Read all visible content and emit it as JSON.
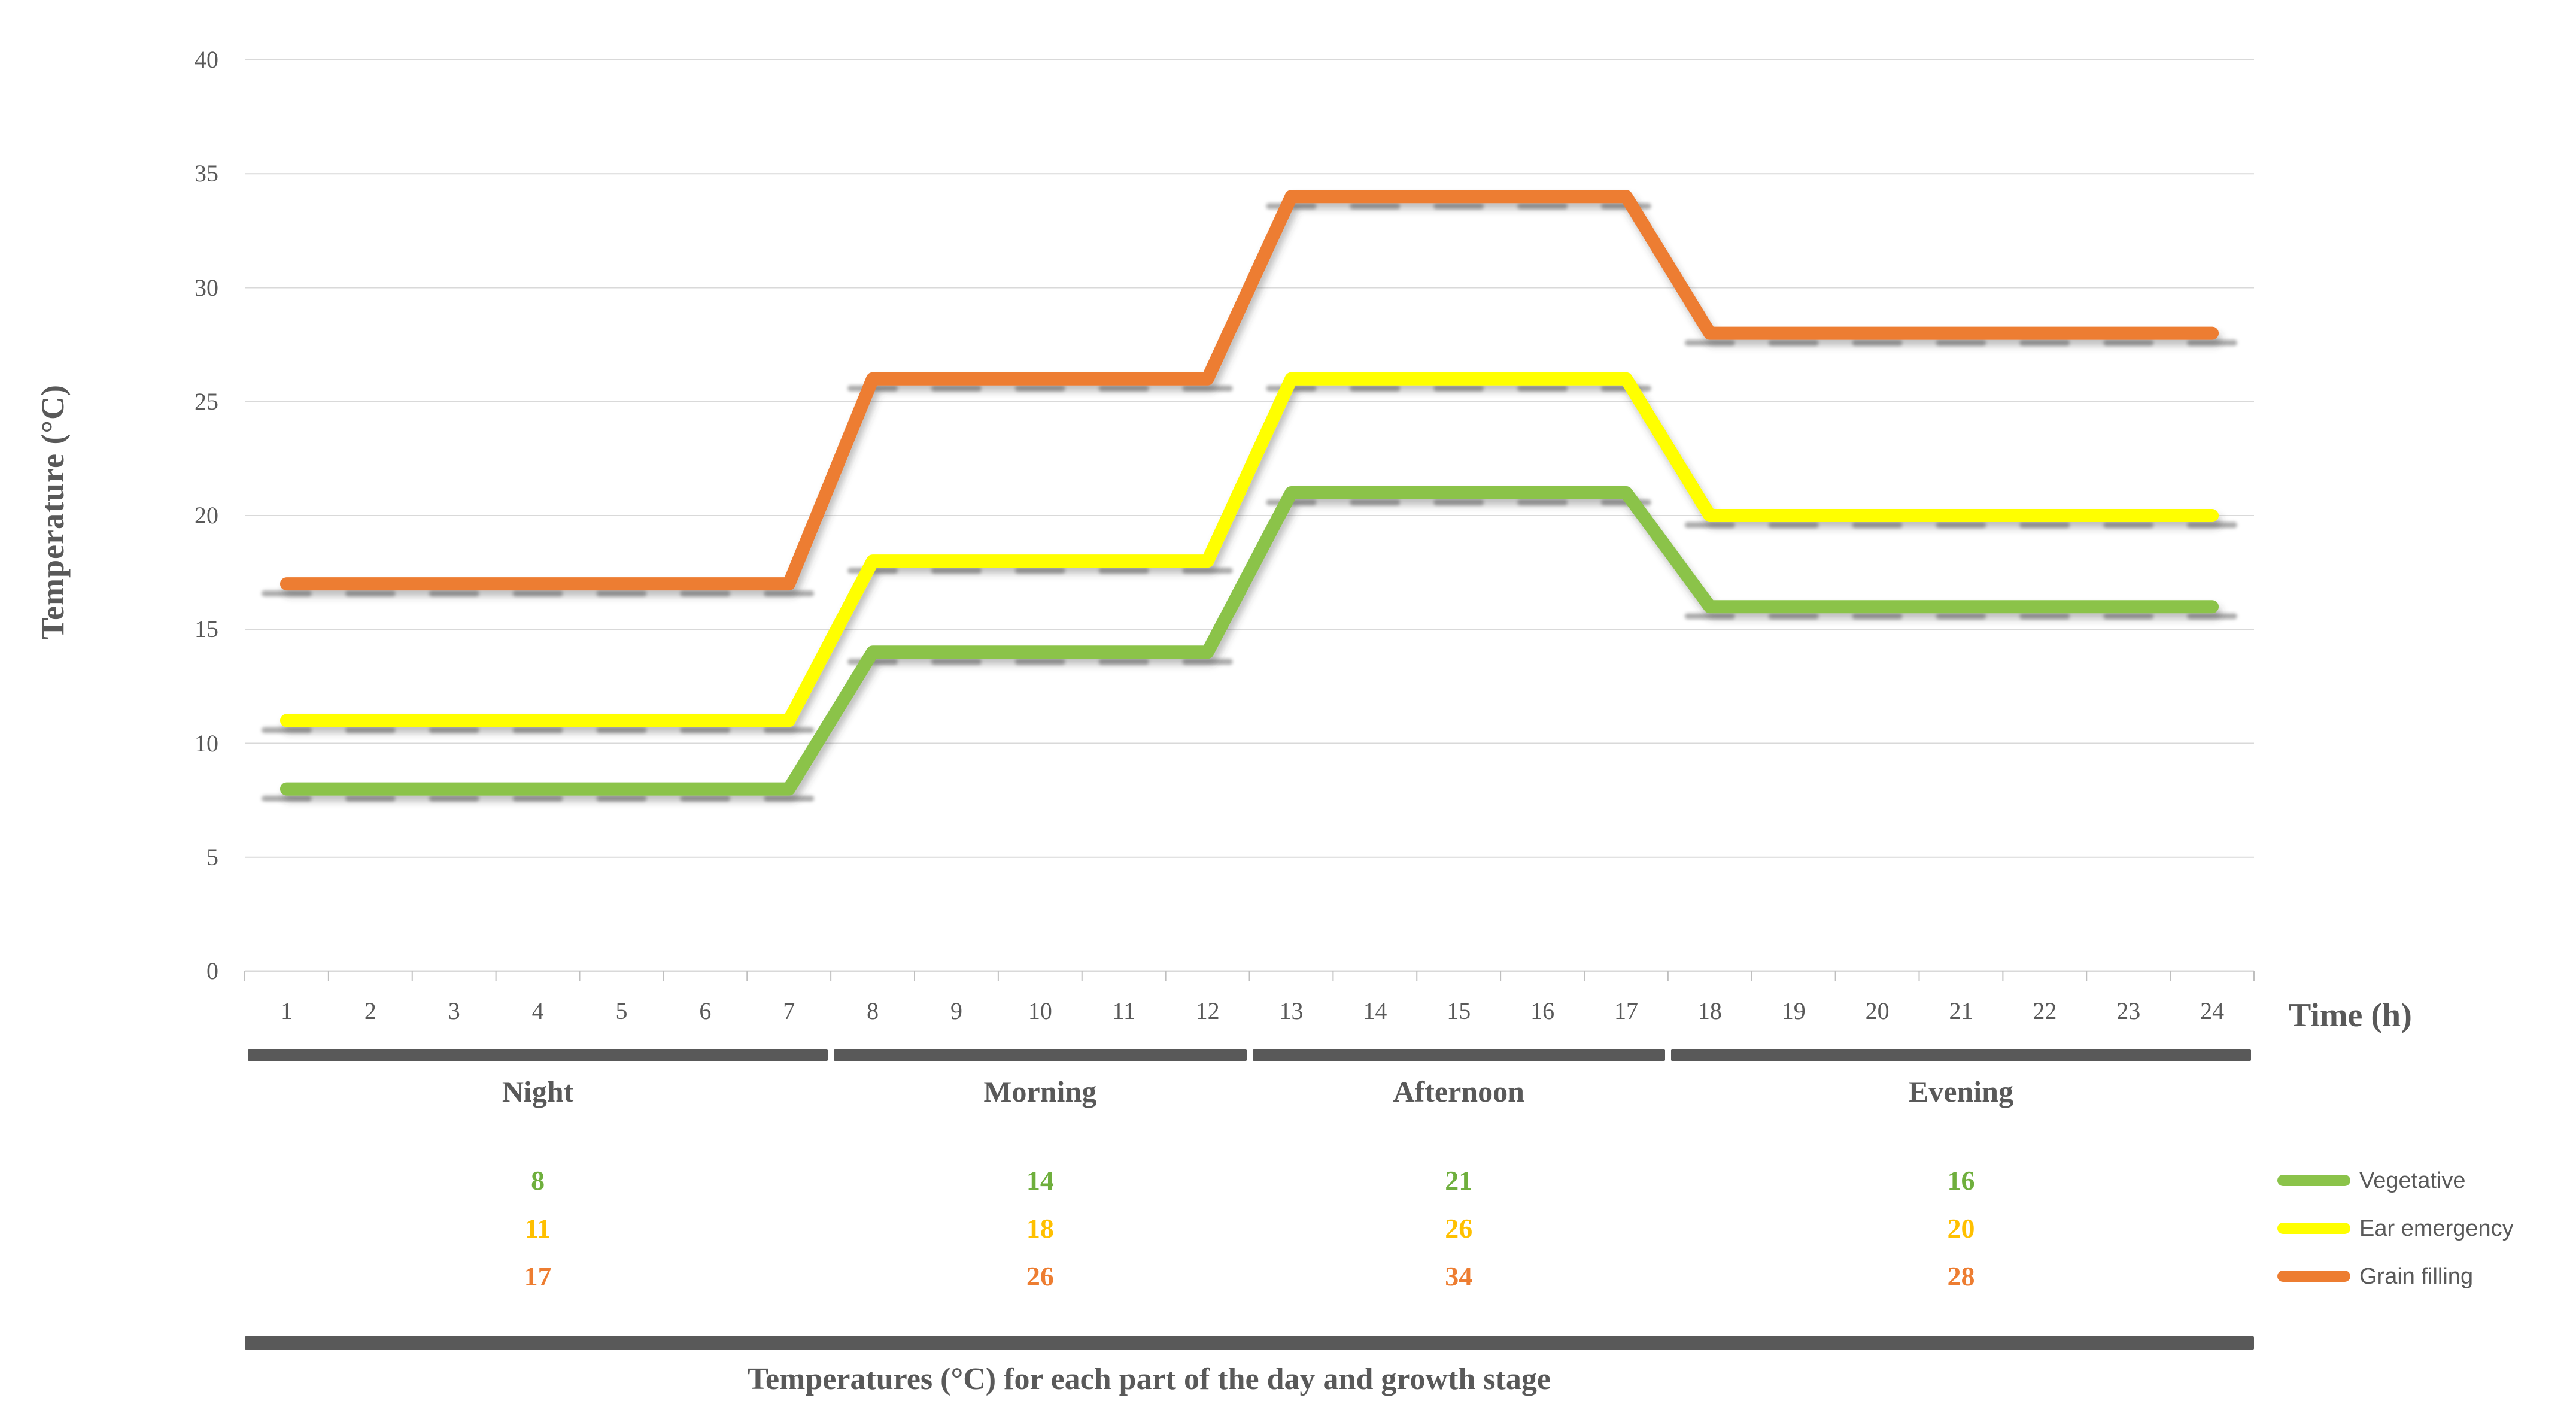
{
  "axes": {
    "x_title": "Time (h)",
    "y_title": "Temperature (°C)"
  },
  "caption": "Temperatures (°C) for each part of the day and growth stage",
  "chart_data": {
    "type": "line",
    "title": "",
    "xlabel": "Time (h)",
    "ylabel": "Temperature (°C)",
    "ylim": [
      0,
      40
    ],
    "y_ticks": [
      0,
      5,
      10,
      15,
      20,
      25,
      30,
      35,
      40
    ],
    "x": [
      1,
      2,
      3,
      4,
      5,
      6,
      7,
      8,
      9,
      10,
      11,
      12,
      13,
      14,
      15,
      16,
      17,
      18,
      19,
      20,
      21,
      22,
      23,
      24
    ],
    "grid": true,
    "legend_position": "bottom-right",
    "series": [
      {
        "name": "Vegetative",
        "color": "#8BC34A",
        "values": [
          8,
          8,
          8,
          8,
          8,
          8,
          8,
          14,
          14,
          14,
          14,
          14,
          21,
          21,
          21,
          21,
          21,
          16,
          16,
          16,
          16,
          16,
          16,
          16
        ]
      },
      {
        "name": "Ear emergency",
        "color": "#FFFF00",
        "values": [
          11,
          11,
          11,
          11,
          11,
          11,
          11,
          18,
          18,
          18,
          18,
          18,
          26,
          26,
          26,
          26,
          26,
          20,
          20,
          20,
          20,
          20,
          20,
          20
        ]
      },
      {
        "name": "Grain filling",
        "color": "#ED7D31",
        "values": [
          17,
          17,
          17,
          17,
          17,
          17,
          17,
          26,
          26,
          26,
          26,
          26,
          34,
          34,
          34,
          34,
          34,
          28,
          28,
          28,
          28,
          28,
          28,
          28
        ]
      }
    ]
  },
  "legend": {
    "items": [
      {
        "label": "Vegetative",
        "color": "#8BC34A"
      },
      {
        "label": "Ear emergency",
        "color": "#FFFF00"
      },
      {
        "label": "Grain filling",
        "color": "#ED7D31"
      }
    ]
  },
  "table": {
    "periods": [
      {
        "label": "Night",
        "start_hour": 1,
        "end_hour": 7
      },
      {
        "label": "Morning",
        "start_hour": 8,
        "end_hour": 12
      },
      {
        "label": "Afternoon",
        "start_hour": 13,
        "end_hour": 17
      },
      {
        "label": "Evening",
        "start_hour": 18,
        "end_hour": 24
      }
    ],
    "rows": [
      {
        "series": "Vegetative",
        "text_color": "#6FAF3D",
        "values": [
          8,
          14,
          21,
          16
        ]
      },
      {
        "series": "Ear emergency",
        "text_color": "#FFC000",
        "values": [
          11,
          18,
          26,
          20
        ]
      },
      {
        "series": "Grain filling",
        "text_color": "#ED7D31",
        "values": [
          17,
          26,
          34,
          28
        ]
      }
    ]
  },
  "colors": {
    "text": "#595959",
    "gridline": "#D9D9D9",
    "tick": "#BFBFBF",
    "table_bar": "#595959"
  }
}
